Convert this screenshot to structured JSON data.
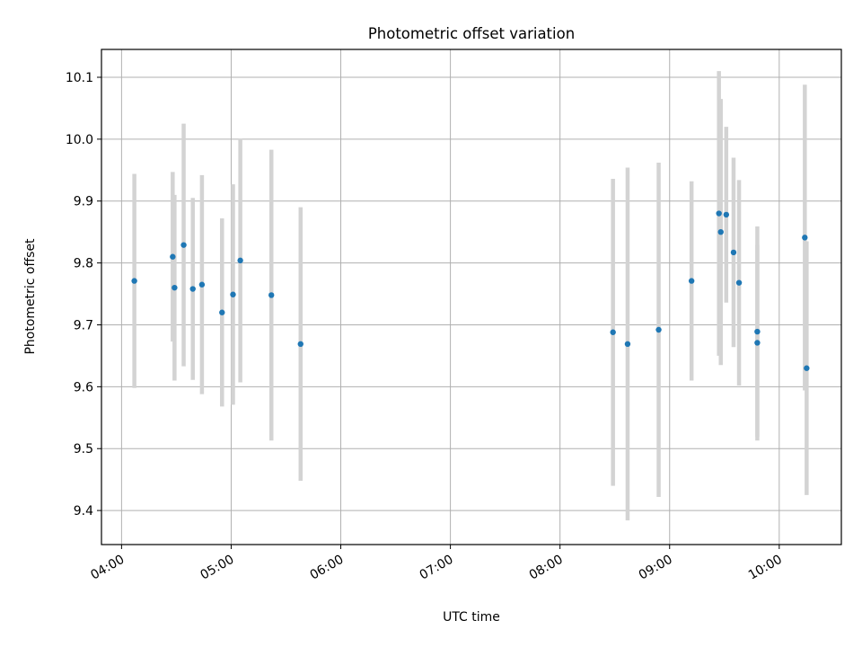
{
  "chart_data": {
    "type": "scatter",
    "title": "Photometric offset variation",
    "xlabel": "UTC time",
    "ylabel": "Photometric offset",
    "x_unit": "UTC hh:mm",
    "xlim": [
      "03:49",
      "10:34"
    ],
    "ylim": [
      9.345,
      10.145
    ],
    "x_ticks": [
      "04:00",
      "05:00",
      "06:00",
      "07:00",
      "08:00",
      "09:00",
      "10:00"
    ],
    "y_ticks": [
      "9.4",
      "9.5",
      "9.6",
      "9.7",
      "9.8",
      "9.9",
      "10.0",
      "10.1"
    ],
    "grid": true,
    "legend": "none",
    "series": [
      {
        "marker_color": "#1f77b4",
        "errorbar_color": "#d3d3d3",
        "points": [
          {
            "x": "04:07",
            "y": 9.771,
            "err": 0.173
          },
          {
            "x": "04:28",
            "y": 9.81,
            "err": 0.137
          },
          {
            "x": "04:29",
            "y": 9.76,
            "err": 0.15
          },
          {
            "x": "04:34",
            "y": 9.829,
            "err": 0.196
          },
          {
            "x": "04:39",
            "y": 9.758,
            "err": 0.147
          },
          {
            "x": "04:44",
            "y": 9.765,
            "err": 0.177
          },
          {
            "x": "04:55",
            "y": 9.72,
            "err": 0.152
          },
          {
            "x": "05:01",
            "y": 9.749,
            "err": 0.178
          },
          {
            "x": "05:05",
            "y": 9.804,
            "err": 0.197
          },
          {
            "x": "05:22",
            "y": 9.748,
            "err": 0.235
          },
          {
            "x": "05:38",
            "y": 9.669,
            "err": 0.221
          },
          {
            "x": "08:29",
            "y": 9.688,
            "err": 0.248
          },
          {
            "x": "08:37",
            "y": 9.669,
            "err": 0.285
          },
          {
            "x": "08:54",
            "y": 9.692,
            "err": 0.27
          },
          {
            "x": "09:12",
            "y": 9.771,
            "err": 0.161
          },
          {
            "x": "09:27",
            "y": 9.88,
            "err": 0.23
          },
          {
            "x": "09:28",
            "y": 9.85,
            "err": 0.215
          },
          {
            "x": "09:31",
            "y": 9.878,
            "err": 0.142
          },
          {
            "x": "09:35",
            "y": 9.817,
            "err": 0.153
          },
          {
            "x": "09:38",
            "y": 9.768,
            "err": 0.166
          },
          {
            "x": "09:48",
            "y": 9.689,
            "err": 0.17
          },
          {
            "x": "09:48",
            "y": 9.671,
            "err": 0.158
          },
          {
            "x": "10:14",
            "y": 9.841,
            "err": 0.247
          },
          {
            "x": "10:15",
            "y": 9.63,
            "err": 0.205
          }
        ]
      }
    ]
  }
}
